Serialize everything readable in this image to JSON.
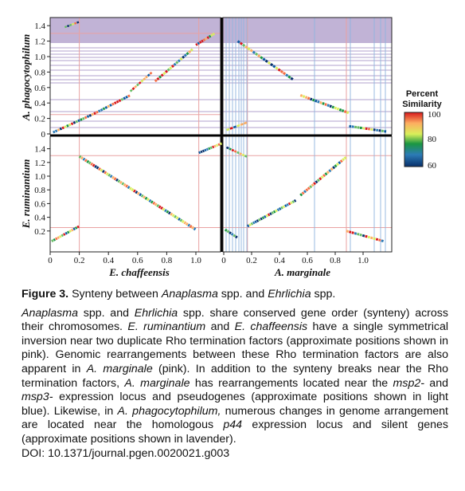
{
  "figure": {
    "axes": {
      "top_left_ylabel": "A. phagocytophilum",
      "bottom_left_ylabel": "E. ruminantium",
      "left_xlabel": "E. chaffeensis",
      "right_xlabel": "A. marginale",
      "left_x_ticks": [
        "0",
        "0.2",
        "0.4",
        "0.6",
        "0.8",
        "1.0"
      ],
      "right_x_ticks": [
        "0",
        "0.2",
        "0.4",
        "0.6",
        "0.8",
        "1.0"
      ],
      "top_y_ticks": [
        "0",
        "0.2",
        "0.4",
        "0.6",
        "0.8",
        "1.0",
        "1.2",
        "1.4"
      ],
      "bottom_y_ticks": [
        "0.2",
        "0.4",
        "0.6",
        "0.8",
        "1.0",
        "1.2",
        "1.4"
      ]
    },
    "legend": {
      "title_line1": "Percent",
      "title_line2": "Similarity",
      "ticks": [
        "100",
        "80",
        "60"
      ],
      "colors": [
        "#d7191c",
        "#fdae61",
        "#a6d96a",
        "#1a9641",
        "#2c7bb6",
        "#08306b"
      ]
    },
    "highlight_colors": {
      "rho": "#e9a2a2",
      "msp": "#8fb4de",
      "lavender": "#b0a2cc"
    }
  },
  "caption": {
    "title_label": "Figure 3.",
    "title_pre": " Synteny between ",
    "title_it1": "Anaplasma",
    "title_mid": " spp. and ",
    "title_it2": "Ehrlichia",
    "title_post": " spp.",
    "p_it1": "Anaplasma",
    "p_t1": " spp. and ",
    "p_it2": "Ehrlichia",
    "p_t2": " spp. share conserved gene order (synteny) across their chromosomes. ",
    "p_it3": "E. ruminantium",
    "p_t3": " and ",
    "p_it4": "E. chaffeensis",
    "p_t4": " have a single symmetrical inversion near two duplicate Rho termination factors (approximate positions shown in pink). Genomic rearrangements between these Rho termination factors are also apparent in ",
    "p_it5": "A. marginale",
    "p_t5": " (pink). In addition to the synteny breaks near the Rho termination factors, ",
    "p_it6": "A. marginale",
    "p_t6": " has rearrangements located near the ",
    "p_it7": "msp2-",
    "p_t7": " and ",
    "p_it8": "msp3-",
    "p_t8": " expression locus and pseudogenes (approximate positions shown in light blue). Likewise, in ",
    "p_it9": "A. phagocytophilum,",
    "p_t9": " numerous changes in genome arrangement are located near the homologous ",
    "p_it10": "p44",
    "p_t10": " expression locus and silent genes (approximate positions shown in lavender).",
    "doi": "DOI: 10.1371/journal.pgen.0020021.g003"
  }
}
